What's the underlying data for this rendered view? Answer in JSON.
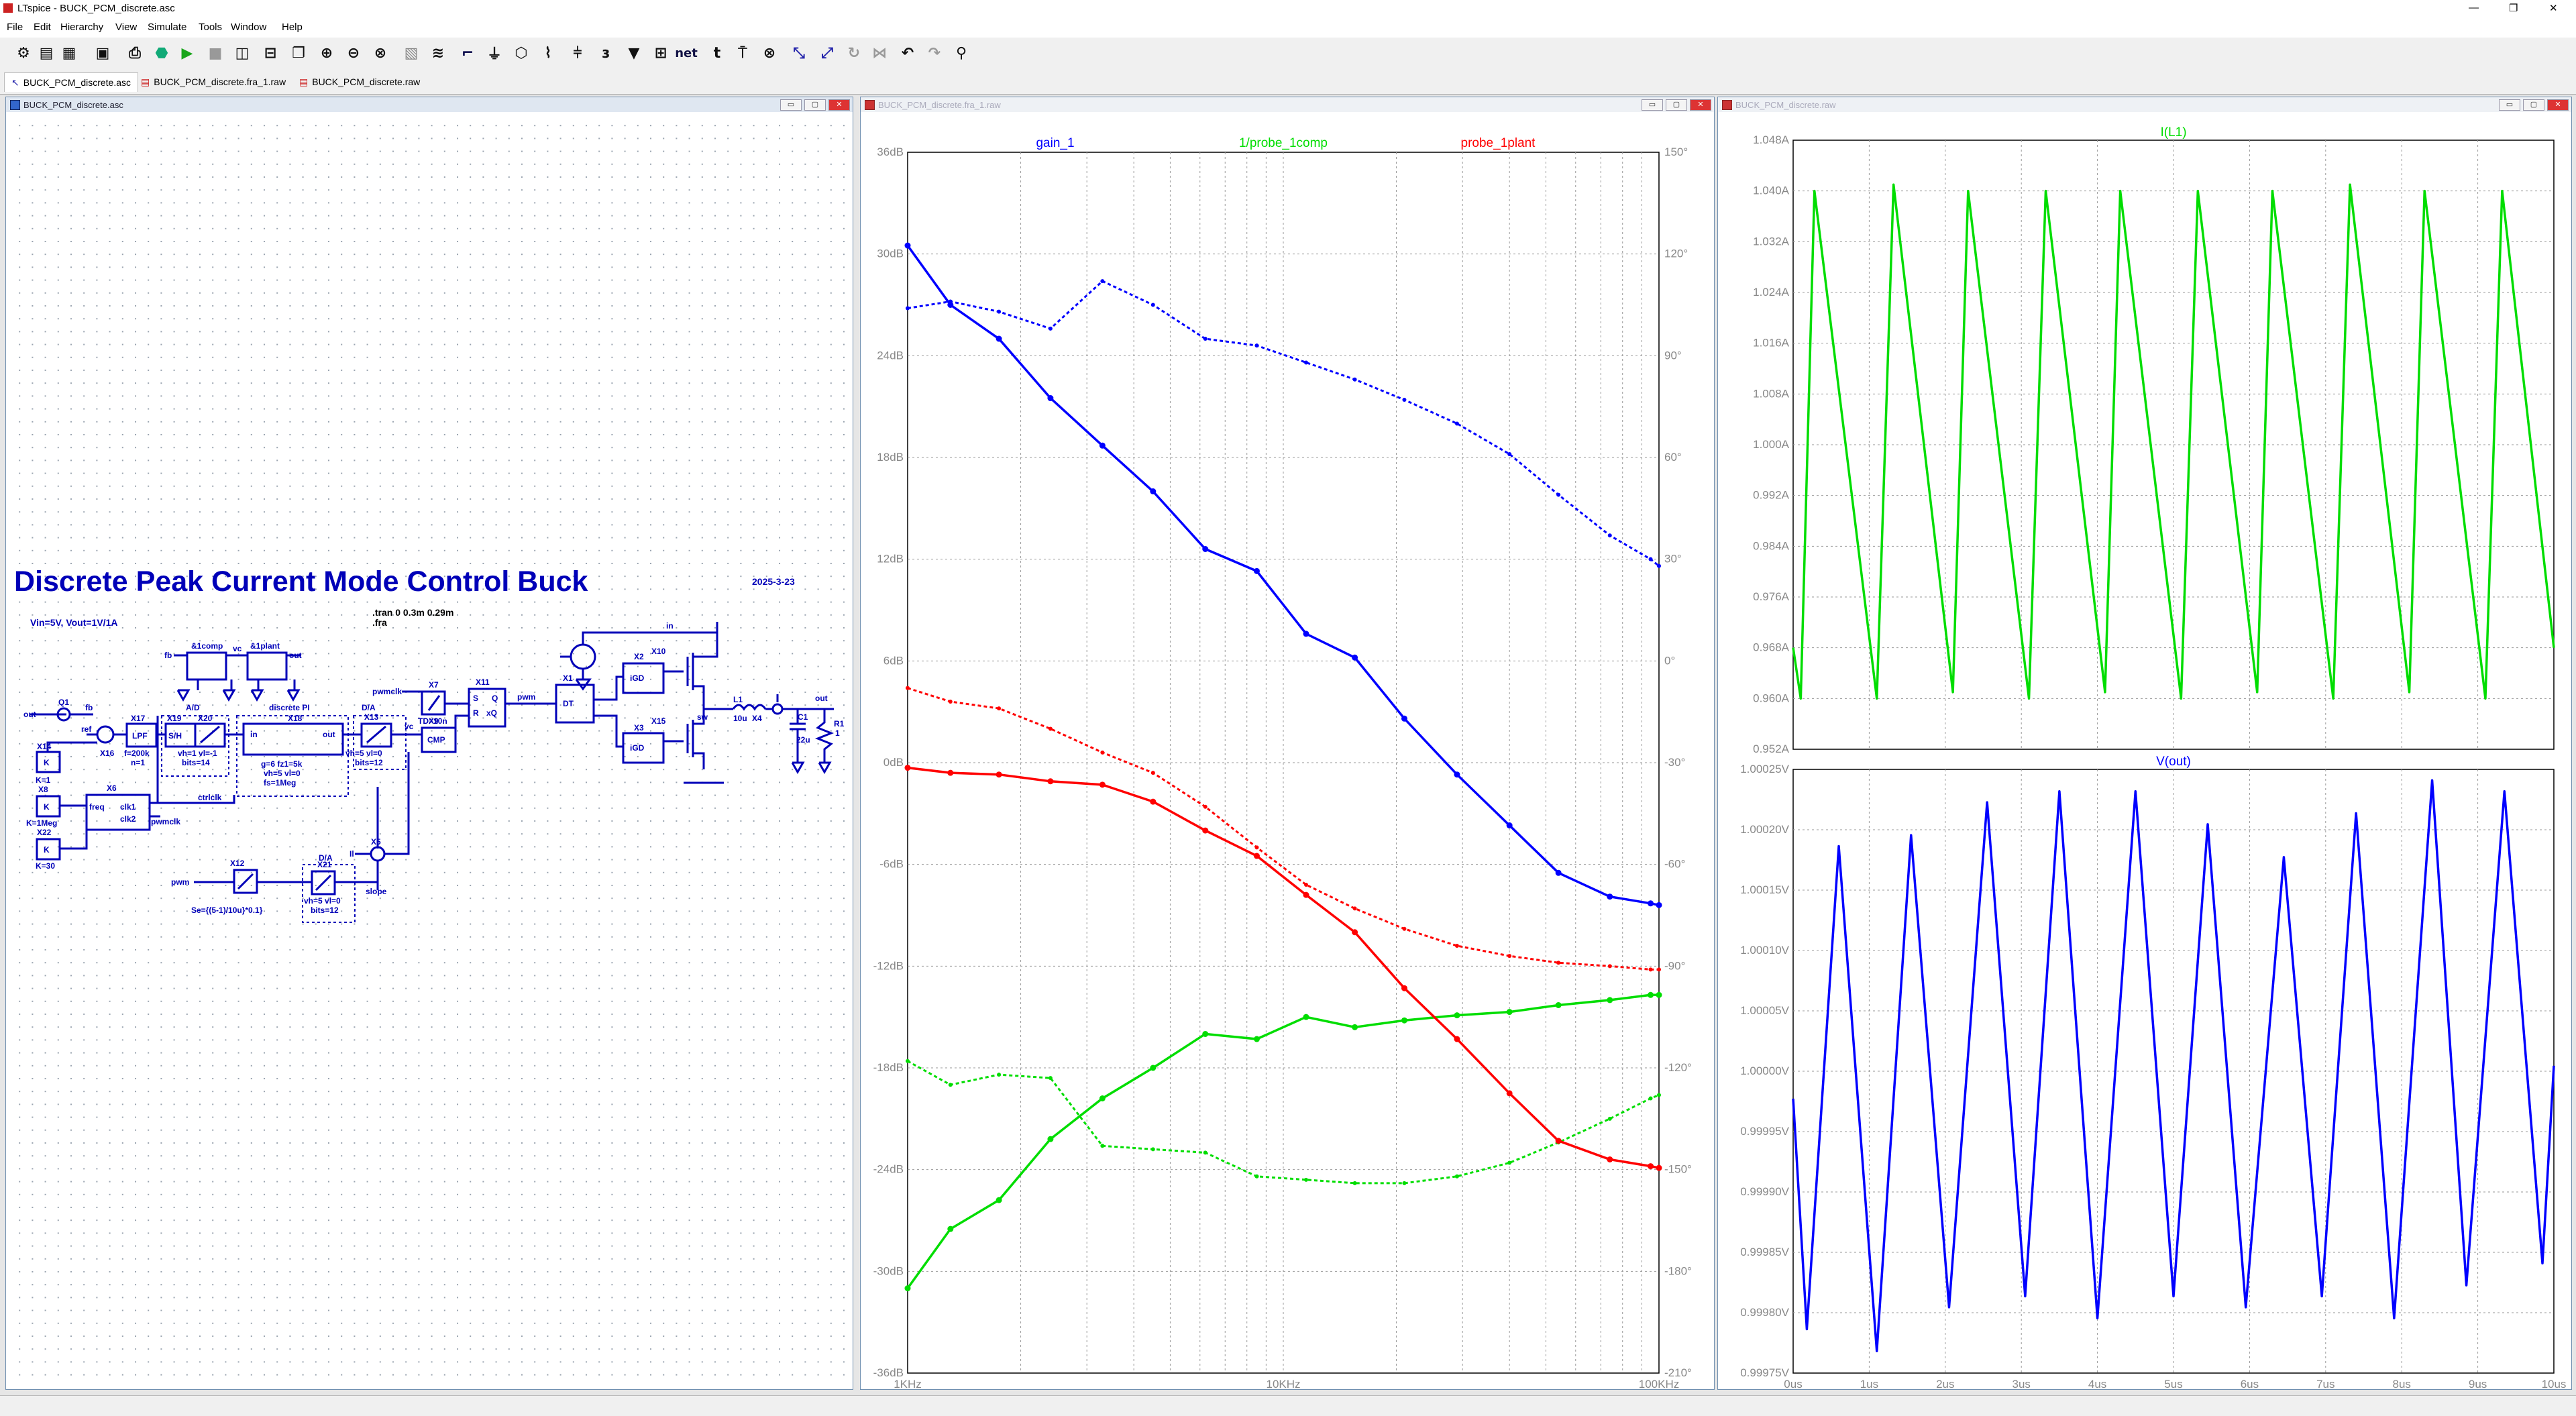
{
  "app": {
    "title": "LTspice - BUCK_PCM_discrete.asc"
  },
  "menu": [
    "File",
    "Edit",
    "Hierarchy",
    "View",
    "Simulate",
    "Tools",
    "Window",
    "Help"
  ],
  "toolbar": {
    "icons": [
      "gear-icon",
      "open-icon",
      "save-icon",
      "print-icon",
      "run-icon",
      "halt-icon",
      "tile-vertical-icon",
      "tile-horizontal-icon",
      "cascade-icon",
      "zoom-in-icon",
      "zoom-out-icon",
      "zoom-fit-icon",
      "wire-icon",
      "ground-icon",
      "label-icon",
      "resistor-icon",
      "capacitor-icon",
      "inductor-icon",
      "diode-icon",
      "component-icon",
      "net-icon",
      "text-icon",
      "directive-icon",
      "delete-icon",
      "move-icon",
      "drag-icon",
      "undo-icon",
      "redo-icon",
      "find-icon"
    ],
    "net_label": "net"
  },
  "tabs": [
    {
      "label": "BUCK_PCM_discrete.asc",
      "active": true
    },
    {
      "label": "BUCK_PCM_discrete.fra_1.raw",
      "active": false
    },
    {
      "label": "BUCK_PCM_discrete.raw",
      "active": false
    }
  ],
  "windows": {
    "schematic": {
      "title": "BUCK_PCM_discrete.asc"
    },
    "bode": {
      "title": "BUCK_PCM_discrete.fra_1.raw"
    },
    "transient": {
      "title": "BUCK_PCM_discrete.raw"
    },
    "btn_min": "▭",
    "btn_max": "▢",
    "btn_close": "✕"
  },
  "schematic": {
    "heading": "Discrete Peak Current Mode Control Buck",
    "date": "2025-3-23",
    "spec": "Vin=5V, Vout=1V/1A",
    "directive_tran": ".tran 0 0.3m 0.29m",
    "directive_fra": ".fra",
    "labels": {
      "comp": "&1comp",
      "plant": "&1plant",
      "fb_left": "fb",
      "vc": "vc",
      "out_p": "out",
      "in_top": "in",
      "x10": "X10",
      "x2": "X2",
      "igd1": "iGD",
      "igd2": "iGD",
      "x3": "X3",
      "x15": "X15",
      "sw": "sw",
      "l1": "L1",
      "l1v": "10u",
      "x4": "X4",
      "c1": "C1",
      "c1v": "22u",
      "out_r": "out",
      "r1": "R1",
      "r1v": "1",
      "x1": "X1",
      "dt": "DT",
      "pwm": "pwm",
      "x11": "X11",
      "sr_s": "S",
      "sr_r": "R",
      "sr_q": "Q",
      "sr_qb": "xQ",
      "x7": "X7",
      "pwmclk1": "pwmclk",
      "td": "TD=10n",
      "x9": "X9",
      "cmp": "CMP",
      "vc2": "vc",
      "x13": "X13",
      "x13p": "vh=5 vl=0",
      "x13b": "bits=12",
      "da1": "D/A",
      "x18": "X18",
      "dpi": "discrete PI",
      "x18p1": "g=6 fz1=5k",
      "x18p2": "vh=5 vl=0",
      "x18p3": "fs=1Meg",
      "in_pi": "in",
      "out_pi": "out",
      "ad": "A/D",
      "x19": "X19",
      "x20": "X20",
      "sh": "S/H",
      "x20p": "vh=1 vl=-1",
      "x20b": "bits=14",
      "x17": "X17",
      "lpf": "LPF",
      "x17p": "f=200k",
      "x17n": "n=1",
      "x16": "X16",
      "ref": "ref",
      "x14": "X14",
      "k1": "K",
      "k1v": "K=1",
      "q1": "Q1",
      "fb2": "fb",
      "out_l": "out",
      "x8": "X8",
      "k2": "K",
      "k2v": "K=1Meg",
      "x6": "X6",
      "freq": "freq",
      "clk1": "clk1",
      "clk2": "clk2",
      "ctrlclk": "ctrlclk",
      "pwmclk2": "pwmclk",
      "x22": "X22",
      "k3": "K",
      "k3v": "K=30",
      "x5": "X5",
      "il": "Il",
      "x12": "X12",
      "pwm2": "pwm",
      "se": "Se={(5-1)/10u}*0.1}",
      "x21": "X21",
      "da2": "D/A",
      "x21p": "vh=5 vl=0",
      "x21b": "bits=12",
      "slope": "slope"
    }
  },
  "bode": {
    "traces": [
      "gain_1",
      "1/probe_1comp",
      "probe_1plant"
    ],
    "trace_colors": [
      "#0000ff",
      "#00dd00",
      "#ff0000"
    ],
    "y_ticks": [
      "36dB",
      "30dB",
      "24dB",
      "18dB",
      "12dB",
      "6dB",
      "0dB",
      "-6dB",
      "-12dB",
      "-18dB",
      "-24dB",
      "-30dB",
      "-36dB"
    ],
    "y2_ticks": [
      "150°",
      "120°",
      "90°",
      "60°",
      "30°",
      "0°",
      "-30°",
      "-60°",
      "-90°",
      "-120°",
      "-150°",
      "-180°",
      "-210°"
    ],
    "x_ticks": [
      "1KHz",
      "10KHz",
      "100KHz"
    ]
  },
  "transient": {
    "current": {
      "trace": "I(L1)",
      "color": "#00dd00",
      "y_ticks": [
        "1.048A",
        "1.040A",
        "1.032A",
        "1.024A",
        "1.016A",
        "1.008A",
        "1.000A",
        "0.992A",
        "0.984A",
        "0.976A",
        "0.968A",
        "0.960A",
        "0.952A"
      ]
    },
    "voltage": {
      "trace": "V(out)",
      "color": "#0000ff",
      "y_ticks": [
        "1.00025V",
        "1.00020V",
        "1.00015V",
        "1.00010V",
        "1.00005V",
        "1.00000V",
        "0.99995V",
        "0.99990V",
        "0.99985V",
        "0.99980V",
        "0.99975V"
      ]
    },
    "x_ticks": [
      "0us",
      "1us",
      "2us",
      "3us",
      "4us",
      "5us",
      "6us",
      "7us",
      "8us",
      "9us",
      "10us"
    ]
  },
  "chart_data": [
    {
      "type": "line",
      "title": "",
      "x_scale": "log",
      "xlim": [
        1000,
        100000
      ],
      "ylim": [
        -36,
        36
      ],
      "ylabel": "dB",
      "y2lim": [
        -210,
        150
      ],
      "y2label": "°",
      "x": [
        1000,
        1300,
        1750,
        2400,
        3300,
        4500,
        6200,
        8500,
        11500,
        15500,
        21000,
        29000,
        40000,
        54000,
        74000,
        95000,
        100000
      ],
      "series": [
        {
          "name": "gain_1",
          "axis": "dB",
          "values": [
            30.5,
            27,
            25,
            21.5,
            18.7,
            16,
            12.6,
            11.3,
            7.6,
            6.2,
            2.6,
            -0.7,
            -3.7,
            -6.5,
            -7.9,
            -8.3,
            -8.4
          ]
        },
        {
          "name": "gain_1",
          "axis": "phase",
          "values": [
            104,
            106,
            103,
            98,
            112,
            105,
            95,
            93,
            88,
            83,
            77,
            70,
            61,
            49,
            37,
            30,
            28
          ]
        },
        {
          "name": "1/probe_1comp",
          "axis": "dB",
          "values": [
            -31,
            -27.5,
            -25.8,
            -22.2,
            -19.8,
            -18,
            -16,
            -16.3,
            -15,
            -15.6,
            -15.2,
            -14.9,
            -14.7,
            -14.3,
            -14,
            -13.7,
            -13.7
          ]
        },
        {
          "name": "1/probe_1comp",
          "axis": "phase",
          "values": [
            -118,
            -125,
            -122,
            -123,
            -143,
            -144,
            -145,
            -152,
            -153,
            -154,
            -154,
            -152,
            -148,
            -142,
            -135,
            -129,
            -128
          ]
        },
        {
          "name": "probe_1plant",
          "axis": "dB",
          "values": [
            -0.3,
            -0.6,
            -0.7,
            -1.1,
            -1.3,
            -2.3,
            -4,
            -5.5,
            -7.8,
            -10,
            -13.3,
            -16.3,
            -19.5,
            -22.3,
            -23.4,
            -23.8,
            -23.9
          ]
        },
        {
          "name": "probe_1plant",
          "axis": "phase",
          "values": [
            -8,
            -12,
            -14,
            -20,
            -27,
            -33,
            -43,
            -55,
            -66,
            -73,
            -79,
            -84,
            -87,
            -89,
            -90,
            -91,
            -91
          ]
        }
      ]
    },
    {
      "type": "line",
      "title": "I(L1)",
      "xlim": [
        0,
        10
      ],
      "xlabel": "us",
      "ylim": [
        0.952,
        1.048
      ],
      "ylabel": "A",
      "series": [
        {
          "name": "I(L1)",
          "x": [
            0,
            0.1,
            0.28,
            1.1,
            1.32,
            2.1,
            2.3,
            3.1,
            3.32,
            4.1,
            4.3,
            5.1,
            5.32,
            6.1,
            6.3,
            7.1,
            7.32,
            8.1,
            8.3,
            9.1,
            9.32,
            10
          ],
          "values": [
            0.968,
            0.96,
            1.04,
            0.96,
            1.041,
            0.961,
            1.04,
            0.96,
            1.04,
            0.961,
            1.04,
            0.96,
            1.04,
            0.961,
            1.04,
            0.96,
            1.041,
            0.961,
            1.04,
            0.96,
            1.04,
            0.968
          ]
        }
      ]
    },
    {
      "type": "line",
      "title": "V(out)",
      "xlim": [
        0,
        10
      ],
      "xlabel": "us",
      "ylim": [
        0.99975,
        1.0003
      ],
      "ylabel": "V",
      "series": [
        {
          "name": "V(out)",
          "x": [
            0,
            0.18,
            0.6,
            1.1,
            1.55,
            2.05,
            2.55,
            3.05,
            3.5,
            4.0,
            4.5,
            5.0,
            5.45,
            5.95,
            6.45,
            6.95,
            7.4,
            7.9,
            8.4,
            8.85,
            9.35,
            9.85,
            10
          ],
          "values": [
            1.0,
            0.99979,
            1.00023,
            0.99977,
            1.00024,
            0.99981,
            1.00027,
            0.99982,
            1.00028,
            0.9998,
            1.00028,
            0.99982,
            1.00025,
            0.99981,
            1.00022,
            0.99982,
            1.00026,
            0.9998,
            1.00029,
            0.99983,
            1.00028,
            0.99985,
            1.00003
          ]
        }
      ]
    }
  ]
}
